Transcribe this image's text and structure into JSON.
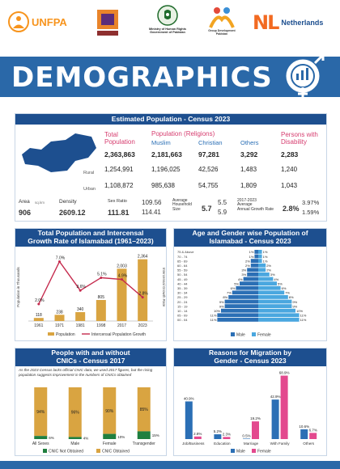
{
  "logos": {
    "unfpa": "UNFPA",
    "ministry": "Ministry of Human Rights\nGovernment of Pakistan",
    "gdp": "Group Development Pakistan",
    "nl": "NL",
    "netherlands": "Netherlands"
  },
  "title": "DEMOGRAPHICS",
  "population": {
    "heading": "Estimated Population - Census 2023",
    "col_total": "Total\nPopulation",
    "col_religions": "Population (Religions)",
    "col_muslim": "Muslim",
    "col_christian": "Christian",
    "col_others": "Others",
    "col_disability": "Persons with\nDisability",
    "rows": [
      {
        "label": "",
        "total": "2,363,863",
        "muslim": "2,181,663",
        "christian": "97,281",
        "others": "3,292",
        "disability": "2,283"
      },
      {
        "label": "Rural",
        "total": "1,254,991",
        "muslim": "1,196,025",
        "christian": "42,526",
        "others": "1,483",
        "disability": "1,240"
      },
      {
        "label": "Urban",
        "total": "1,108,872",
        "muslim": "985,638",
        "christian": "54,755",
        "others": "1,809",
        "disability": "1,043"
      }
    ],
    "stats": {
      "area_label": "Area",
      "area_unit": "sq.km",
      "area_value": "906",
      "density_label": "Density",
      "density_value": "2609.12",
      "sexratio_label": "Sex Ratio",
      "sexratio_value": "111.81",
      "sexratio_rural": "109.56",
      "sexratio_urban": "114.41",
      "hh_label": "Average\nHousehold\nSize",
      "hh_value": "5.7",
      "hh_rural": "5.5",
      "hh_urban": "5.9",
      "agr_label": "2017-2023\nAverage\nAnnual Growth Rate",
      "agr_value": "2.8%",
      "agr_rural": "3.97%",
      "agr_urban": "1.59%"
    }
  },
  "chart_growth": {
    "heading": "Total Population and Intercensal\nGrowth Rate of Islamabad (1961–2023)",
    "ylabel_left": "Population in Thousands",
    "ylabel_right": "Intercensal Growth Rate",
    "legend": [
      "Population",
      "Intercensal Population Growth"
    ],
    "colors": {
      "bar": "#d9a441",
      "line": "#c52a4d"
    }
  },
  "chart_pyramid": {
    "heading": "Age and Gender wise Population of\nIslamabad - Census 2023",
    "legend": [
      "Male",
      "Female"
    ],
    "colors": {
      "male": "#2b6fb5",
      "female": "#4aa7df"
    }
  },
  "chart_cnic": {
    "heading": "People with and without\nCNICs - Census 2017",
    "note": "As the 2023 Census lacks official CNIC data, we used 2017 figures, but the rising population suggests improvement in the numbers of CNICs obtained",
    "legend": [
      "CNIC Not Obtained",
      "CNIC Obtained"
    ],
    "colors": {
      "not": "#1f7f3f",
      "obtained": "#d9a441"
    }
  },
  "chart_migration": {
    "heading": "Reasons for Migration by\nGender - Census 2023",
    "legend": [
      "Male",
      "Female"
    ],
    "colors": {
      "male": "#2b6fb5",
      "female": "#e3498e"
    }
  },
  "chart_data": [
    {
      "type": "bar",
      "title": "Total Population and Intercensal Growth Rate of Islamabad (1961–2023)",
      "categories": [
        "1961",
        "1971",
        "1981",
        "1998",
        "2017",
        "2023"
      ],
      "series": [
        {
          "name": "Population",
          "type": "bar",
          "values": [
            118,
            238,
            340,
            805,
            2003,
            2364
          ]
        },
        {
          "name": "Intercensal Population Growth",
          "type": "line",
          "values": [
            2.0,
            7.0,
            3.6,
            5.1,
            4.9,
            2.8
          ]
        }
      ],
      "labels_line": [
        "2.0%",
        "7.0%",
        "3.6%",
        "5.1%",
        "4.9%",
        "2.8%"
      ],
      "labels_bar": [
        "118",
        "238",
        "340",
        "805",
        "2,003",
        "2,364"
      ],
      "xlabel": "",
      "ylabel": "Population in Thousands",
      "y2label": "Intercensal Growth Rate"
    },
    {
      "type": "bar",
      "title": "Age and Gender wise Population of Islamabad - Census 2023",
      "orientation": "horizontal",
      "categories": [
        "75 & Above",
        "70 - 74",
        "65 - 69",
        "60 - 64",
        "55 - 59",
        "50 - 54",
        "45 - 49",
        "40 - 44",
        "35 - 39",
        "30 - 34",
        "25 - 29",
        "20 - 24",
        "15 - 19",
        "10 - 14",
        "05 - 09",
        "00 - 04"
      ],
      "series": [
        {
          "name": "Male",
          "values": [
            1,
            1,
            2,
            2,
            3,
            3,
            4,
            5,
            6,
            7,
            8,
            9,
            9,
            10,
            11,
            11
          ]
        },
        {
          "name": "Female",
          "values": [
            1,
            1,
            1,
            2,
            2,
            3,
            4,
            5,
            6,
            7,
            8,
            9,
            9,
            10,
            11,
            11
          ]
        }
      ]
    },
    {
      "type": "bar",
      "title": "People with and without CNICs - Census 2017",
      "stacked": true,
      "categories": [
        "All Sexes",
        "Male",
        "Female",
        "Transgender"
      ],
      "series": [
        {
          "name": "CNIC Not Obtained",
          "values": [
            6,
            4,
            10,
            15
          ]
        },
        {
          "name": "CNIC Obtained",
          "values": [
            94,
            96,
            90,
            85
          ]
        }
      ]
    },
    {
      "type": "bar",
      "title": "Reasons for Migration by Gender - Census 2023",
      "categories": [
        "Job/Business",
        "Education",
        "Marriage",
        "With Family",
        "Others"
      ],
      "series": [
        {
          "name": "Male",
          "values": [
            40.9,
            5.2,
            0.5,
            42.9,
            10.6
          ]
        },
        {
          "name": "Female",
          "values": [
            2.8,
            2.3,
            19.2,
            68.9,
            6.7
          ]
        }
      ]
    }
  ]
}
